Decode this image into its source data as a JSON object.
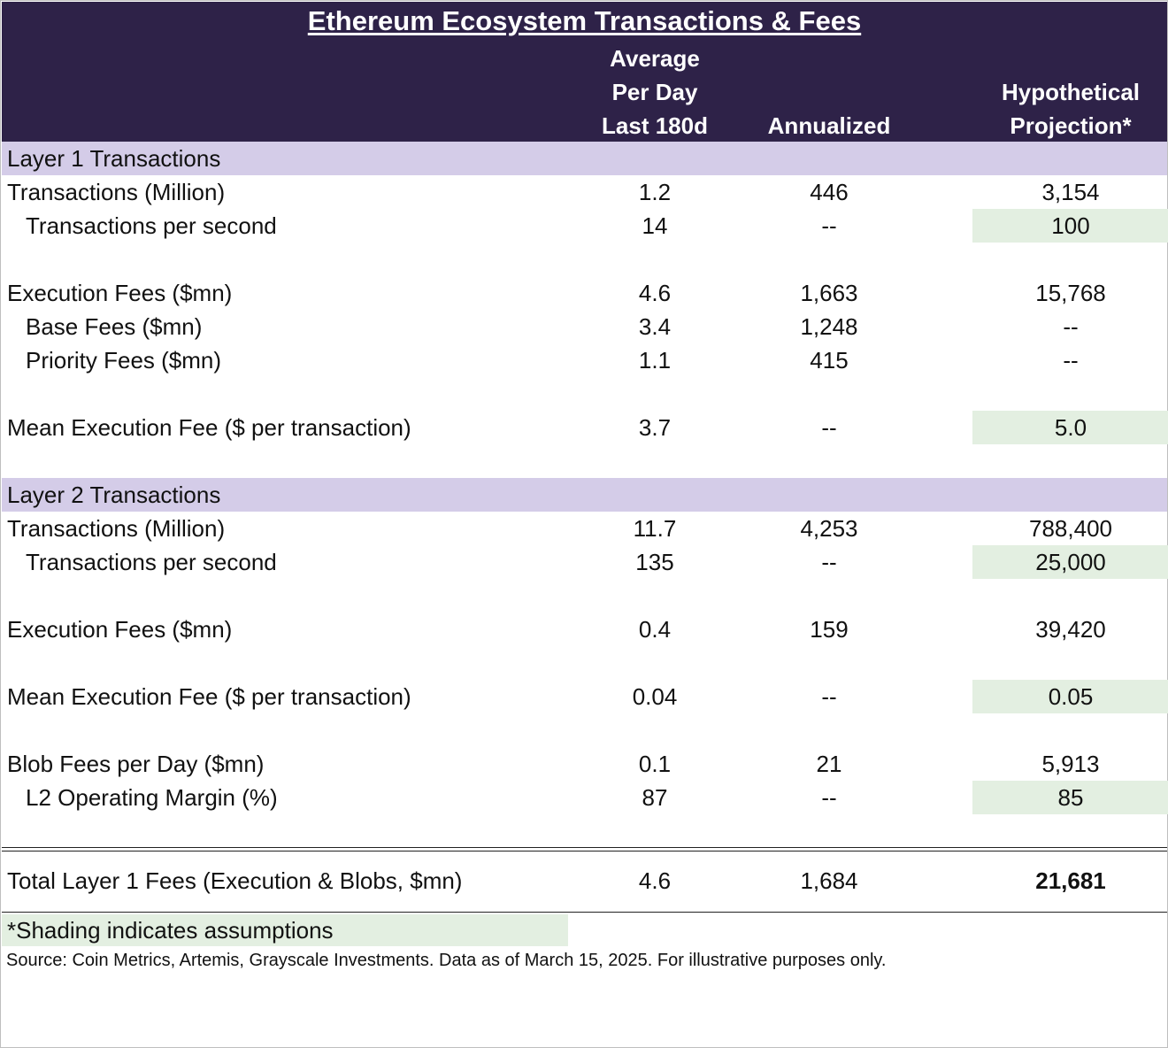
{
  "header": {
    "title": "Ethereum Ecosystem Transactions & Fees",
    "col1": [
      "Average",
      "Per Day",
      "Last 180d"
    ],
    "col2": "Annualized",
    "col3": [
      "Hypothetical",
      "Projection*"
    ]
  },
  "layer1": {
    "section_label": "Layer 1 Transactions",
    "rows": [
      {
        "label": "Transactions (Million)",
        "avg": "1.2",
        "annual": "446",
        "proj": "3,154"
      },
      {
        "label": "Transactions per second",
        "avg": "14",
        "annual": "--",
        "proj": "100"
      },
      {
        "label": "Execution Fees ($mn)",
        "avg": "4.6",
        "annual": "1,663",
        "proj": "15,768"
      },
      {
        "label": "Base Fees ($mn)",
        "avg": "3.4",
        "annual": "1,248",
        "proj": "--"
      },
      {
        "label": "Priority Fees ($mn)",
        "avg": "1.1",
        "annual": "415",
        "proj": "--"
      },
      {
        "label": "Mean Execution Fee ($ per transaction)",
        "avg": "3.7",
        "annual": "--",
        "proj": "5.0"
      }
    ]
  },
  "layer2": {
    "section_label": "Layer 2 Transactions",
    "rows": [
      {
        "label": "Transactions (Million)",
        "avg": "11.7",
        "annual": "4,253",
        "proj": "788,400"
      },
      {
        "label": "Transactions per second",
        "avg": "135",
        "annual": "--",
        "proj": "25,000"
      },
      {
        "label": "Execution Fees ($mn)",
        "avg": "0.4",
        "annual": "159",
        "proj": "39,420"
      },
      {
        "label": "Mean Execution Fee ($ per transaction)",
        "avg": "0.04",
        "annual": "--",
        "proj": "0.05"
      },
      {
        "label": "Blob Fees per Day ($mn)",
        "avg": "0.1",
        "annual": "21",
        "proj": "5,913"
      },
      {
        "label": "L2 Operating Margin (%)",
        "avg": "87",
        "annual": "--",
        "proj": "85"
      }
    ]
  },
  "total": {
    "label": "Total Layer 1 Fees (Execution & Blobs, $mn)",
    "avg": "4.6",
    "annual": "1,684",
    "proj": "21,681"
  },
  "footnote": "*Shading indicates assumptions",
  "source": "Source: Coin Metrics, Artemis, Grayscale Investments. Data as of March 15, 2025. For illustrative purposes only.",
  "colors": {
    "header_bg": "#2e2248",
    "section_bg": "#d4cce8",
    "assumption_shade": "#e3efe1"
  }
}
